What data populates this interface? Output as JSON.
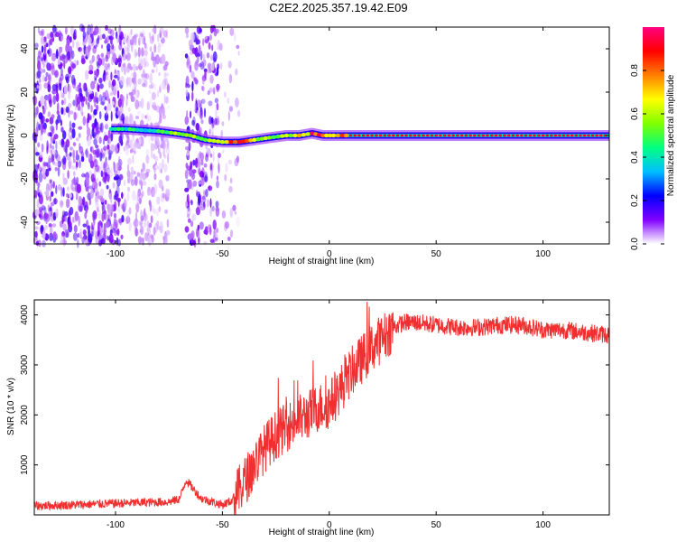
{
  "title": "C2E2.2025.357.19.42.E09",
  "chart_data": [
    {
      "type": "heatmap",
      "xlabel": "Height of straight line (km)",
      "ylabel": "Frequency (Hz)",
      "xlim": [
        -138,
        131
      ],
      "ylim": [
        -50,
        50
      ],
      "x_ticks": [
        -100,
        -50,
        0,
        50,
        100
      ],
      "y_ticks": [
        -40,
        -20,
        0,
        20,
        40
      ],
      "colorbar": {
        "label": "Normalized spectral amplitude",
        "range": [
          0,
          1
        ],
        "ticks": [
          "0.0",
          "0.2",
          "0.4",
          "0.6",
          "0.8"
        ],
        "colors": [
          "#ffffff",
          "#8000ff",
          "#0000ff",
          "#00c0ff",
          "#00ff80",
          "#80ff00",
          "#ffff00",
          "#ff8000",
          "#ff0000",
          "#ff0080"
        ]
      },
      "ridge": [
        {
          "x": -102,
          "y": 3,
          "a": 0.45
        },
        {
          "x": -95,
          "y": 3,
          "a": 0.45
        },
        {
          "x": -88,
          "y": 2.5,
          "a": 0.4
        },
        {
          "x": -80,
          "y": 2,
          "a": 0.45
        },
        {
          "x": -72,
          "y": 1,
          "a": 0.55
        },
        {
          "x": -65,
          "y": 0,
          "a": 0.55
        },
        {
          "x": -58,
          "y": -2,
          "a": 0.6
        },
        {
          "x": -50,
          "y": -3,
          "a": 0.7
        },
        {
          "x": -42,
          "y": -3,
          "a": 0.85
        },
        {
          "x": -35,
          "y": -2,
          "a": 0.6
        },
        {
          "x": -28,
          "y": -1,
          "a": 0.65
        },
        {
          "x": -20,
          "y": 0,
          "a": 0.6
        },
        {
          "x": -14,
          "y": 0,
          "a": 0.7
        },
        {
          "x": -8,
          "y": 1,
          "a": 0.85
        },
        {
          "x": -3,
          "y": 0,
          "a": 0.85
        },
        {
          "x": 2,
          "y": 0,
          "a": 0.75
        },
        {
          "x": 10,
          "y": 0,
          "a": 0.9
        },
        {
          "x": 50,
          "y": 0,
          "a": 0.92
        },
        {
          "x": 100,
          "y": 0,
          "a": 0.92
        },
        {
          "x": 131,
          "y": 0,
          "a": 0.92
        }
      ]
    },
    {
      "type": "line",
      "xlabel": "Height of straight line (km)",
      "ylabel": "SNR (10 * v/v)",
      "xlim": [
        -138,
        131
      ],
      "ylim": [
        0,
        4300
      ],
      "x_ticks": [
        -100,
        -50,
        0,
        50,
        100
      ],
      "y_ticks": [
        1000,
        2000,
        3000,
        4000
      ],
      "color": "#f03030",
      "series": [
        {
          "x": [
            -138,
            -120,
            -100,
            -85,
            -75,
            -70,
            -67,
            -60,
            -50,
            -45,
            -40,
            -35,
            -30,
            -25,
            -20,
            -15,
            -10,
            -5,
            0,
            5,
            10,
            15,
            20,
            25,
            30,
            35,
            40,
            50,
            60,
            70,
            80,
            90,
            100,
            110,
            120,
            131
          ],
          "y": [
            180,
            200,
            230,
            250,
            260,
            320,
            700,
            330,
            200,
            300,
            650,
            1000,
            1350,
            1600,
            1750,
            1900,
            2000,
            2150,
            2200,
            2500,
            2850,
            3100,
            3350,
            3550,
            3750,
            3850,
            3850,
            3800,
            3750,
            3750,
            3800,
            3800,
            3700,
            3700,
            3650,
            3600
          ]
        }
      ]
    }
  ]
}
